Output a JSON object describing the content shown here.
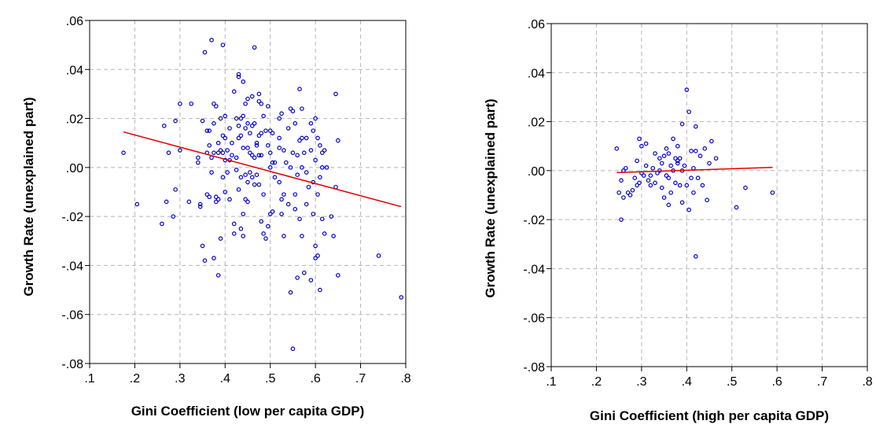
{
  "chart_data": [
    {
      "type": "scatter",
      "xlabel": "Gini Coefficient (low per capita GDP)",
      "ylabel": "Growth Rate (unexplained part)",
      "xlim": [
        0.1,
        0.8
      ],
      "ylim": [
        -0.08,
        0.06
      ],
      "xticks": [
        ".1",
        ".2",
        ".3",
        ".4",
        ".5",
        ".6",
        ".7",
        ".8"
      ],
      "yticks": [
        ".06",
        ".04",
        ".02",
        ".00",
        "-.02",
        "-.04",
        "-.06",
        "-.08"
      ],
      "grid": true,
      "marker_color": "#0000cc",
      "line_color": "#e00000",
      "fit_line": {
        "x": [
          0.175,
          0.79
        ],
        "y": [
          0.0145,
          -0.016
        ]
      },
      "points": [
        [
          0.175,
          0.006
        ],
        [
          0.205,
          -0.015
        ],
        [
          0.26,
          -0.023
        ],
        [
          0.265,
          0.017
        ],
        [
          0.27,
          -0.014
        ],
        [
          0.275,
          0.006
        ],
        [
          0.285,
          -0.02
        ],
        [
          0.29,
          0.019
        ],
        [
          0.29,
          -0.009
        ],
        [
          0.3,
          0.026
        ],
        [
          0.3,
          0.007
        ],
        [
          0.32,
          -0.014
        ],
        [
          0.325,
          0.026
        ],
        [
          0.34,
          0.004
        ],
        [
          0.34,
          0.002
        ],
        [
          0.345,
          -0.015
        ],
        [
          0.345,
          -0.016
        ],
        [
          0.35,
          0.019
        ],
        [
          0.35,
          -0.032
        ],
        [
          0.355,
          -0.038
        ],
        [
          0.355,
          0.047
        ],
        [
          0.36,
          0.015
        ],
        [
          0.36,
          0.006
        ],
        [
          0.36,
          -0.011
        ],
        [
          0.365,
          0.015
        ],
        [
          0.365,
          -0.012
        ],
        [
          0.365,
          0.009
        ],
        [
          0.37,
          0.052
        ],
        [
          0.37,
          0.004
        ],
        [
          0.37,
          -0.002
        ],
        [
          0.375,
          0.026
        ],
        [
          0.375,
          0.018
        ],
        [
          0.375,
          0.006
        ],
        [
          0.375,
          -0.037
        ],
        [
          0.38,
          0.025
        ],
        [
          0.38,
          -0.014
        ],
        [
          0.385,
          0.01
        ],
        [
          0.385,
          0.006
        ],
        [
          0.385,
          -0.013
        ],
        [
          0.385,
          -0.044
        ],
        [
          0.39,
          0.02
        ],
        [
          0.39,
          0.007
        ],
        [
          0.39,
          -0.029
        ],
        [
          0.395,
          0.05
        ],
        [
          0.395,
          0.013
        ],
        [
          0.395,
          0.006
        ],
        [
          0.395,
          -0.004
        ],
        [
          0.4,
          0.021
        ],
        [
          0.4,
          0.012
        ],
        [
          0.4,
          0.003
        ],
        [
          0.4,
          -0.01
        ],
        [
          0.405,
          0.007
        ],
        [
          0.405,
          -0.002
        ],
        [
          0.41,
          0.003
        ],
        [
          0.41,
          -0.013
        ],
        [
          0.415,
          0.01
        ],
        [
          0.415,
          0.005
        ],
        [
          0.42,
          0.031
        ],
        [
          0.42,
          -0.023
        ],
        [
          0.42,
          -0.027
        ],
        [
          0.425,
          0.02
        ],
        [
          0.425,
          0.004
        ],
        [
          0.425,
          -0.001
        ],
        [
          0.43,
          0.038
        ],
        [
          0.43,
          0.037
        ],
        [
          0.43,
          0.017
        ],
        [
          0.43,
          0.012
        ],
        [
          0.43,
          -0.009
        ],
        [
          0.435,
          0.02
        ],
        [
          0.435,
          0.013
        ],
        [
          0.435,
          -0.004
        ],
        [
          0.435,
          -0.025
        ],
        [
          0.44,
          0.035
        ],
        [
          0.44,
          0.021
        ],
        [
          0.44,
          0.008
        ],
        [
          0.44,
          -0.028
        ],
        [
          0.445,
          0.026
        ],
        [
          0.445,
          0.016
        ],
        [
          0.445,
          -0.003
        ],
        [
          0.445,
          -0.013
        ],
        [
          0.45,
          0.028
        ],
        [
          0.45,
          0.018
        ],
        [
          0.45,
          0.008
        ],
        [
          0.45,
          -0.006
        ],
        [
          0.45,
          -0.014
        ],
        [
          0.455,
          0.014
        ],
        [
          0.455,
          0.006
        ],
        [
          0.455,
          -0.002
        ],
        [
          0.46,
          0.029
        ],
        [
          0.46,
          0.017
        ],
        [
          0.46,
          0.005
        ],
        [
          0.46,
          -0.004
        ],
        [
          0.465,
          0.049
        ],
        [
          0.465,
          0.018
        ],
        [
          0.465,
          0.004
        ],
        [
          0.465,
          -0.007
        ],
        [
          0.47,
          0.009
        ],
        [
          0.47,
          -0.003
        ],
        [
          0.475,
          0.03
        ],
        [
          0.475,
          0.027
        ],
        [
          0.475,
          0.013
        ],
        [
          0.475,
          0.005
        ],
        [
          0.475,
          -0.007
        ],
        [
          0.48,
          0.026
        ],
        [
          0.48,
          0.014
        ],
        [
          0.48,
          0.005
        ],
        [
          0.48,
          -0.022
        ],
        [
          0.485,
          0.021
        ],
        [
          0.485,
          -0.011
        ],
        [
          0.485,
          -0.027
        ],
        [
          0.49,
          0.015
        ],
        [
          0.49,
          -0.029
        ],
        [
          0.495,
          0.025
        ],
        [
          0.495,
          0.009
        ],
        [
          0.495,
          -0.024
        ],
        [
          0.5,
          0.015
        ],
        [
          0.5,
          0.006
        ],
        [
          0.5,
          0.0
        ],
        [
          0.5,
          -0.019
        ],
        [
          0.505,
          0.014
        ],
        [
          0.505,
          0.002
        ],
        [
          0.505,
          -0.018
        ],
        [
          0.51,
          0.002
        ],
        [
          0.51,
          -0.004
        ],
        [
          0.52,
          0.02
        ],
        [
          0.52,
          0.012
        ],
        [
          0.52,
          -0.006
        ],
        [
          0.525,
          0.022
        ],
        [
          0.525,
          -0.013
        ],
        [
          0.525,
          -0.019
        ],
        [
          0.53,
          0.007
        ],
        [
          0.53,
          -0.011
        ],
        [
          0.53,
          -0.028
        ],
        [
          0.535,
          0.002
        ],
        [
          0.54,
          0.016
        ],
        [
          0.54,
          -0.015
        ],
        [
          0.545,
          0.024
        ],
        [
          0.545,
          0.0
        ],
        [
          0.545,
          -0.051
        ],
        [
          0.55,
          0.023
        ],
        [
          0.55,
          0.006
        ],
        [
          0.55,
          -0.074
        ],
        [
          0.555,
          0.018
        ],
        [
          0.555,
          -0.011
        ],
        [
          0.555,
          -0.017
        ],
        [
          0.56,
          -0.003
        ],
        [
          0.56,
          -0.045
        ],
        [
          0.565,
          0.032
        ],
        [
          0.565,
          0.011
        ],
        [
          0.565,
          -0.021
        ],
        [
          0.57,
          0.024
        ],
        [
          0.57,
          0.012
        ],
        [
          0.57,
          0.0
        ],
        [
          0.57,
          -0.028
        ],
        [
          0.575,
          0.006
        ],
        [
          0.575,
          -0.043
        ],
        [
          0.58,
          0.012
        ],
        [
          0.58,
          -0.002
        ],
        [
          0.585,
          -0.008
        ],
        [
          0.59,
          0.018
        ],
        [
          0.59,
          0.007
        ],
        [
          0.59,
          -0.046
        ],
        [
          0.595,
          0.015
        ],
        [
          0.595,
          -0.006
        ],
        [
          0.595,
          -0.019
        ],
        [
          0.6,
          0.02
        ],
        [
          0.6,
          0.003
        ],
        [
          0.6,
          -0.037
        ],
        [
          0.605,
          0.012
        ],
        [
          0.605,
          -0.011
        ],
        [
          0.605,
          -0.036
        ],
        [
          0.61,
          0.009
        ],
        [
          0.61,
          -0.004
        ],
        [
          0.61,
          -0.05
        ],
        [
          0.615,
          0.006
        ],
        [
          0.615,
          0.0
        ],
        [
          0.615,
          -0.021
        ],
        [
          0.62,
          0.007
        ],
        [
          0.62,
          -0.027
        ],
        [
          0.625,
          0.0
        ],
        [
          0.635,
          -0.02
        ],
        [
          0.64,
          -0.028
        ],
        [
          0.645,
          0.03
        ],
        [
          0.645,
          -0.008
        ],
        [
          0.65,
          0.011
        ],
        [
          0.65,
          -0.044
        ],
        [
          0.74,
          -0.036
        ],
        [
          0.79,
          -0.053
        ],
        [
          0.56,
          0.005
        ],
        [
          0.47,
          0.01
        ],
        [
          0.6,
          -0.032
        ],
        [
          0.38,
          -0.012
        ],
        [
          0.41,
          0.016
        ],
        [
          0.52,
          0.008
        ],
        [
          0.44,
          -0.019
        ],
        [
          0.58,
          -0.015
        ]
      ]
    },
    {
      "type": "scatter",
      "xlabel": "Gini Coefficient (high per capita GDP)",
      "ylabel": "Growth Rate (unexplained part)",
      "xlim": [
        0.1,
        0.8
      ],
      "ylim": [
        -0.08,
        0.06
      ],
      "xticks": [
        ".1",
        ".2",
        ".3",
        ".4",
        ".5",
        ".6",
        ".7",
        ".8"
      ],
      "yticks": [
        ".06",
        ".04",
        ".02",
        ".00",
        "-.02",
        "-.04",
        "-.06",
        "-.08"
      ],
      "grid": true,
      "marker_color": "#0000cc",
      "line_color": "#e00000",
      "fit_line": {
        "x": [
          0.245,
          0.59
        ],
        "y": [
          -0.0008,
          0.0013
        ]
      },
      "points": [
        [
          0.245,
          0.009
        ],
        [
          0.25,
          -0.009
        ],
        [
          0.255,
          -0.02
        ],
        [
          0.255,
          -0.004
        ],
        [
          0.26,
          0.0
        ],
        [
          0.26,
          -0.011
        ],
        [
          0.265,
          0.001
        ],
        [
          0.27,
          -0.009
        ],
        [
          0.275,
          -0.01
        ],
        [
          0.28,
          -0.008
        ],
        [
          0.285,
          -0.003
        ],
        [
          0.29,
          0.004
        ],
        [
          0.29,
          -0.006
        ],
        [
          0.295,
          0.013
        ],
        [
          0.295,
          -0.005
        ],
        [
          0.3,
          0.01
        ],
        [
          0.3,
          -0.001
        ],
        [
          0.305,
          -0.002
        ],
        [
          0.31,
          0.011
        ],
        [
          0.31,
          0.002
        ],
        [
          0.315,
          -0.004
        ],
        [
          0.32,
          -0.006
        ],
        [
          0.32,
          -0.002
        ],
        [
          0.325,
          0.001
        ],
        [
          0.33,
          0.007
        ],
        [
          0.33,
          -0.005
        ],
        [
          0.335,
          -0.001
        ],
        [
          0.34,
          0.005
        ],
        [
          0.34,
          0.0
        ],
        [
          0.345,
          0.003
        ],
        [
          0.345,
          -0.007
        ],
        [
          0.35,
          0.006
        ],
        [
          0.35,
          -0.011
        ],
        [
          0.355,
          0.009
        ],
        [
          0.355,
          -0.002
        ],
        [
          0.36,
          0.007
        ],
        [
          0.36,
          -0.014
        ],
        [
          0.365,
          0.002
        ],
        [
          0.365,
          -0.009
        ],
        [
          0.37,
          0.013
        ],
        [
          0.37,
          0.0
        ],
        [
          0.375,
          0.005
        ],
        [
          0.375,
          -0.005
        ],
        [
          0.38,
          0.01
        ],
        [
          0.38,
          0.003
        ],
        [
          0.385,
          0.005
        ],
        [
          0.385,
          -0.006
        ],
        [
          0.39,
          0.019
        ],
        [
          0.39,
          0.0
        ],
        [
          0.395,
          0.002
        ],
        [
          0.4,
          0.033
        ],
        [
          0.4,
          -0.006
        ],
        [
          0.405,
          0.024
        ],
        [
          0.405,
          -0.016
        ],
        [
          0.41,
          0.008
        ],
        [
          0.41,
          -0.003
        ],
        [
          0.415,
          0.001
        ],
        [
          0.415,
          -0.009
        ],
        [
          0.42,
          0.018
        ],
        [
          0.42,
          0.008
        ],
        [
          0.42,
          -0.035
        ],
        [
          0.425,
          -0.003
        ],
        [
          0.43,
          0.006
        ],
        [
          0.435,
          -0.006
        ],
        [
          0.44,
          0.009
        ],
        [
          0.445,
          -0.012
        ],
        [
          0.45,
          0.003
        ],
        [
          0.455,
          0.012
        ],
        [
          0.465,
          0.005
        ],
        [
          0.51,
          -0.015
        ],
        [
          0.53,
          -0.007
        ],
        [
          0.59,
          -0.009
        ],
        [
          0.39,
          -0.013
        ],
        [
          0.36,
          -0.003
        ],
        [
          0.38,
          0.004
        ]
      ]
    }
  ]
}
